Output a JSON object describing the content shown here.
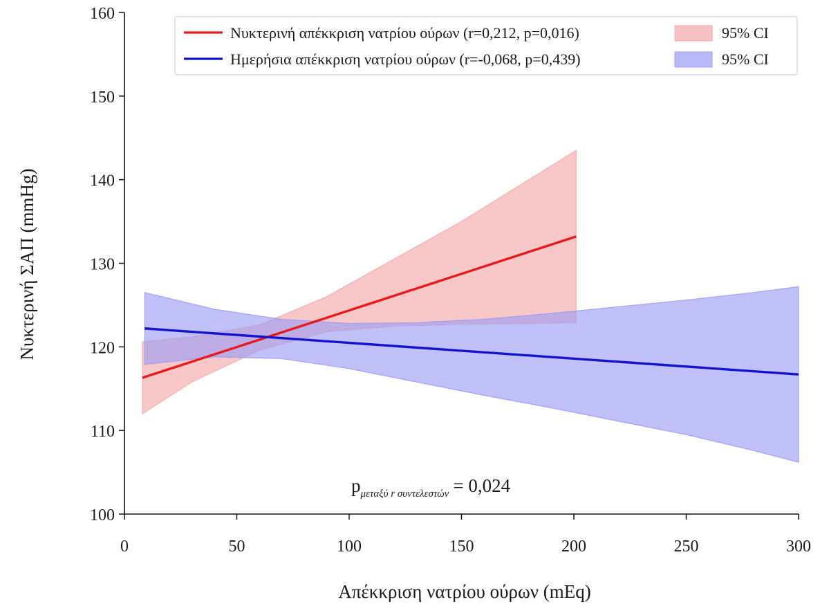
{
  "chart_data": {
    "type": "line",
    "title": "",
    "xlabel": "Απέκκριση νατρίου ούρων (mEq)",
    "ylabel": "Νυκτερινή ΣΑΠ (mmHg)",
    "xlim": [
      0,
      300
    ],
    "ylim": [
      100,
      160
    ],
    "x_ticks": [
      "0",
      "50",
      "100",
      "150",
      "200",
      "250",
      "300"
    ],
    "y_ticks": [
      "100",
      "110",
      "120",
      "130",
      "140",
      "150",
      "160"
    ],
    "grid": false,
    "legend_position": "top-right",
    "series": [
      {
        "name": "Νυκτερινή απέκκριση νατρίου ούρων (r=0,212, p=0,016)",
        "color": "#e8191c",
        "x": [
          8,
          201
        ],
        "y": [
          116.3,
          133.2
        ],
        "ci_name": "95% CI",
        "ci_color": "#f4a6a6",
        "ci_x": [
          8,
          30,
          60,
          90,
          120,
          150,
          180,
          201
        ],
        "ci_lower": [
          112.0,
          115.8,
          119.6,
          121.8,
          122.5,
          122.7,
          122.8,
          122.9
        ],
        "ci_upper": [
          120.6,
          121.2,
          122.6,
          126.0,
          130.5,
          135.0,
          140.0,
          143.5
        ]
      },
      {
        "name": "Ημερήσια απέκκριση νατρίου ούρων (r=-0,068, p=0,439)",
        "color": "#1414cc",
        "x": [
          9,
          300
        ],
        "y": [
          122.2,
          116.7
        ],
        "ci_name": "95% CI",
        "ci_color": "#9b9bf5",
        "ci_x": [
          9,
          40,
          70,
          100,
          130,
          160,
          190,
          220,
          250,
          280,
          300
        ],
        "ci_lower": [
          117.9,
          118.8,
          118.6,
          117.4,
          115.8,
          114.2,
          112.7,
          111.1,
          109.5,
          107.6,
          106.2
        ],
        "ci_upper": [
          126.5,
          124.5,
          123.3,
          122.8,
          122.9,
          123.3,
          124.0,
          124.8,
          125.6,
          126.5,
          127.2
        ]
      }
    ],
    "annotation": {
      "p_symbol": "p",
      "subscript": "μεταξύ r συντελεστών",
      "value_text": "= 0,024"
    }
  }
}
